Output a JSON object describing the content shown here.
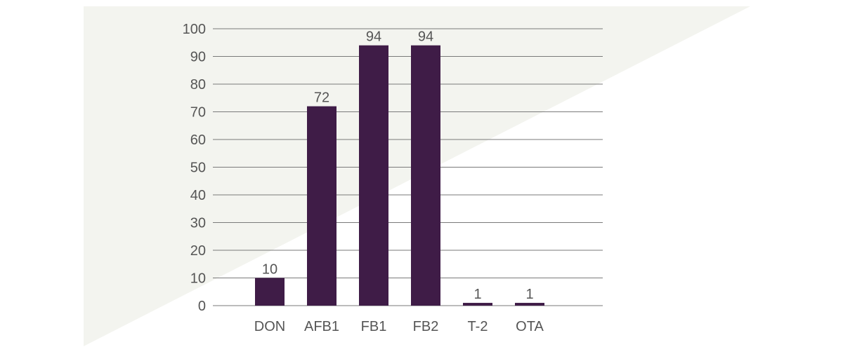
{
  "colors": {
    "bar": "#3f1c47",
    "background_shape": "#f3f4ef",
    "grid": "#7a7a7a",
    "text": "#555555"
  },
  "chart_data": {
    "type": "bar",
    "categories": [
      "DON",
      "AFB1",
      "FB1",
      "FB2",
      "T-2",
      "OTA"
    ],
    "values": [
      10,
      72,
      94,
      94,
      1,
      1
    ],
    "data_labels": [
      "10",
      "72",
      "94",
      "94",
      "1",
      "1"
    ],
    "title": "",
    "xlabel": "",
    "ylabel": "",
    "ylim": [
      0,
      100
    ],
    "yticks": [
      0,
      10,
      20,
      30,
      40,
      50,
      60,
      70,
      80,
      90,
      100
    ],
    "grid": true,
    "legend": "none"
  }
}
